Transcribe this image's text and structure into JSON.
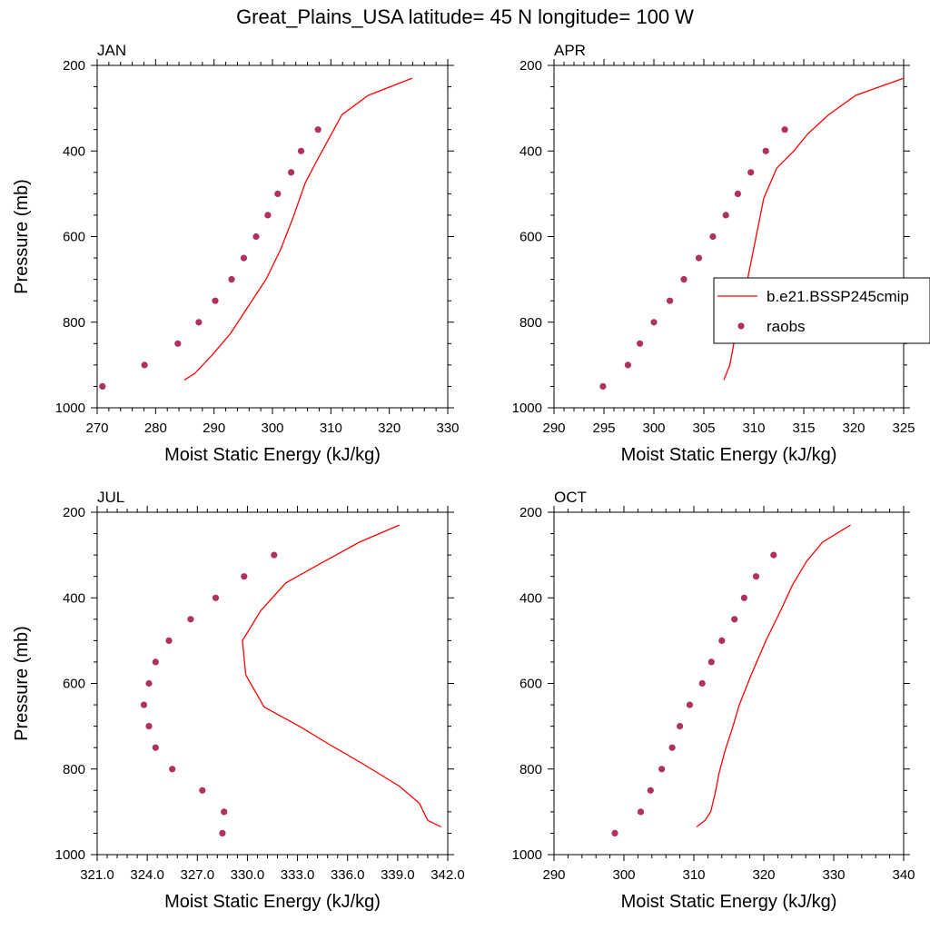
{
  "figure": {
    "title": "Great_Plains_USA  latitude= 45 N longitude= 100 W"
  },
  "legend": {
    "items": [
      {
        "label": "b.e21.BSSP245cmip",
        "kind": "line",
        "color": "#ff0000"
      },
      {
        "label": "raobs",
        "kind": "marker",
        "color": "#b03060"
      }
    ]
  },
  "colors": {
    "model": "#ff0000",
    "obs": "#b03060",
    "axis": "#000000"
  },
  "chart_data": [
    {
      "type": "line",
      "title": "JAN",
      "xlabel": "Moist Static Energy (kJ/kg)",
      "ylabel": "Pressure (mb)",
      "xlim": [
        270,
        330
      ],
      "ylim": [
        1000,
        200
      ],
      "xticks": [
        "270",
        "280",
        "290",
        "300",
        "310",
        "320",
        "330"
      ],
      "yticks": [
        "200",
        "400",
        "600",
        "800",
        "1000"
      ],
      "series": [
        {
          "name": "b.e21.BSSP245cmip",
          "style": "line",
          "x": [
            284.9,
            286.7,
            289.8,
            292.9,
            296.0,
            298.9,
            301.4,
            303.4,
            305.6,
            307.5,
            309.9,
            311.9,
            316.4,
            323.9
          ],
          "y": [
            935,
            920,
            875,
            825,
            760,
            700,
            630,
            560,
            475,
            425,
            365,
            315,
            270,
            230
          ]
        },
        {
          "name": "raobs",
          "style": "marker",
          "x": [
            270.9,
            278.1,
            283.8,
            287.4,
            290.2,
            293.0,
            295.1,
            297.2,
            299.2,
            300.9,
            303.2,
            304.9,
            307.8
          ],
          "y": [
            950,
            900,
            850,
            800,
            750,
            700,
            650,
            600,
            550,
            500,
            450,
            400,
            350
          ]
        }
      ]
    },
    {
      "type": "line",
      "title": "APR",
      "xlabel": "Moist Static Energy (kJ/kg)",
      "ylabel": "",
      "xlim": [
        290,
        325
      ],
      "ylim": [
        1000,
        200
      ],
      "xticks": [
        "290",
        "295",
        "300",
        "305",
        "310",
        "315",
        "320",
        "325"
      ],
      "yticks": [
        "200",
        "400",
        "600",
        "800",
        "1000"
      ],
      "series": [
        {
          "name": "b.e21.BSSP245cmip",
          "style": "line",
          "x": [
            307.0,
            307.6,
            308.0,
            308.6,
            309.2,
            309.8,
            310.4,
            311.0,
            312.3,
            314.0,
            315.4,
            317.5,
            320.2,
            325.0
          ],
          "y": [
            935,
            900,
            850,
            780,
            720,
            650,
            580,
            510,
            440,
            400,
            360,
            315,
            270,
            230
          ]
        },
        {
          "name": "raobs",
          "style": "marker",
          "x": [
            294.9,
            297.4,
            298.6,
            300.0,
            301.6,
            303.0,
            304.5,
            305.9,
            307.2,
            308.4,
            309.7,
            311.2,
            313.1
          ],
          "y": [
            950,
            900,
            850,
            800,
            750,
            700,
            650,
            600,
            550,
            500,
            450,
            400,
            350
          ]
        }
      ]
    },
    {
      "type": "line",
      "title": "JUL",
      "xlabel": "Moist Static Energy (kJ/kg)",
      "ylabel": "Pressure (mb)",
      "xlim": [
        321.0,
        342.0
      ],
      "ylim": [
        1000,
        200
      ],
      "xticks": [
        "321.0",
        "324.0",
        "327.0",
        "330.0",
        "333.0",
        "336.0",
        "339.0",
        "342.0"
      ],
      "yticks": [
        "200",
        "400",
        "600",
        "800",
        "1000"
      ],
      "series": [
        {
          "name": "b.e21.BSSP245cmip",
          "style": "line",
          "x": [
            341.6,
            340.8,
            340.3,
            339.1,
            337.0,
            334.8,
            333.1,
            331.0,
            329.9,
            329.7,
            330.8,
            332.3,
            334.6,
            336.7,
            339.1
          ],
          "y": [
            935,
            920,
            880,
            840,
            790,
            740,
            700,
            655,
            580,
            500,
            430,
            365,
            315,
            270,
            230
          ]
        },
        {
          "name": "raobs",
          "style": "marker",
          "x": [
            328.5,
            328.6,
            327.3,
            325.5,
            324.5,
            324.1,
            323.8,
            324.1,
            324.5,
            325.3,
            326.6,
            328.1,
            329.8,
            331.6
          ],
          "y": [
            950,
            900,
            850,
            800,
            750,
            700,
            650,
            600,
            550,
            500,
            450,
            400,
            350,
            300
          ]
        }
      ]
    },
    {
      "type": "line",
      "title": "OCT",
      "xlabel": "Moist Static Energy (kJ/kg)",
      "ylabel": "",
      "xlim": [
        290,
        340
      ],
      "ylim": [
        1000,
        200
      ],
      "xticks": [
        "290",
        "300",
        "310",
        "320",
        "330",
        "340"
      ],
      "yticks": [
        "200",
        "400",
        "600",
        "800",
        "1000"
      ],
      "series": [
        {
          "name": "b.e21.BSSP245cmip",
          "style": "line",
          "x": [
            310.4,
            311.6,
            312.4,
            313.0,
            313.6,
            314.4,
            315.6,
            316.5,
            318.2,
            320.3,
            322.4,
            324.1,
            326.1,
            328.4,
            332.4
          ],
          "y": [
            935,
            920,
            900,
            860,
            810,
            760,
            700,
            650,
            580,
            500,
            430,
            370,
            315,
            270,
            230
          ]
        },
        {
          "name": "raobs",
          "style": "marker",
          "x": [
            298.7,
            302.4,
            303.8,
            305.4,
            306.9,
            308.0,
            309.4,
            311.2,
            312.5,
            314.0,
            315.8,
            317.2,
            318.9,
            321.4
          ],
          "y": [
            950,
            900,
            850,
            800,
            750,
            700,
            650,
            600,
            550,
            500,
            450,
            400,
            350,
            300
          ]
        }
      ]
    }
  ]
}
